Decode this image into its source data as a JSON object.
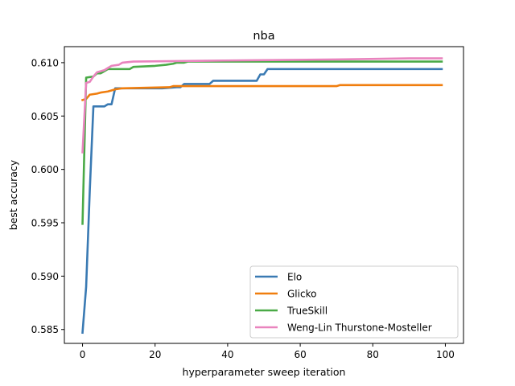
{
  "chart_data": {
    "type": "line",
    "title": "nba",
    "xlabel": "hyperparameter sweep iteration",
    "ylabel": "best accuracy",
    "xlim": [
      -5,
      105
    ],
    "ylim": [
      0.5837,
      0.6115
    ],
    "xticks": [
      0,
      20,
      40,
      60,
      80,
      100
    ],
    "yticks": [
      0.585,
      0.59,
      0.595,
      0.6,
      0.605,
      0.61
    ],
    "ytick_labels": [
      "0.585",
      "0.590",
      "0.595",
      "0.600",
      "0.605",
      "0.610"
    ],
    "xtick_labels": [
      "0",
      "20",
      "40",
      "60",
      "80",
      "100"
    ],
    "grid": false,
    "legend_position": "lower-right",
    "series": [
      {
        "name": "Elo",
        "color": "#3a7ab3",
        "points": [
          [
            0,
            0.5847
          ],
          [
            1,
            0.589
          ],
          [
            2,
            0.598
          ],
          [
            3,
            0.6059
          ],
          [
            5,
            0.6059
          ],
          [
            6,
            0.6059
          ],
          [
            7,
            0.6061
          ],
          [
            8,
            0.6061
          ],
          [
            9,
            0.6076
          ],
          [
            22,
            0.6076
          ],
          [
            26,
            0.6077
          ],
          [
            27,
            0.6077
          ],
          [
            28,
            0.608
          ],
          [
            35,
            0.608
          ],
          [
            36,
            0.6083
          ],
          [
            48,
            0.6083
          ],
          [
            49,
            0.6089
          ],
          [
            50,
            0.6089
          ],
          [
            51,
            0.6094
          ],
          [
            99,
            0.6094
          ]
        ]
      },
      {
        "name": "Glicko",
        "color": "#f07e0e",
        "points": [
          [
            0,
            0.6065
          ],
          [
            1,
            0.6066
          ],
          [
            2,
            0.607
          ],
          [
            4,
            0.6071
          ],
          [
            5,
            0.6072
          ],
          [
            7,
            0.6073
          ],
          [
            9,
            0.6075
          ],
          [
            11,
            0.6076
          ],
          [
            24,
            0.6077
          ],
          [
            25,
            0.6078
          ],
          [
            70,
            0.6078
          ],
          [
            71,
            0.6079
          ],
          [
            99,
            0.6079
          ]
        ]
      },
      {
        "name": "TrueSkill",
        "color": "#4aaa47",
        "points": [
          [
            0,
            0.5949
          ],
          [
            1,
            0.6086
          ],
          [
            3,
            0.6087
          ],
          [
            4,
            0.609
          ],
          [
            5,
            0.609
          ],
          [
            7,
            0.6094
          ],
          [
            13,
            0.6094
          ],
          [
            14,
            0.6096
          ],
          [
            20,
            0.6097
          ],
          [
            23,
            0.6098
          ],
          [
            25,
            0.6099
          ],
          [
            26,
            0.61
          ],
          [
            28,
            0.61
          ],
          [
            29,
            0.6101
          ],
          [
            99,
            0.6101
          ]
        ]
      },
      {
        "name": "Weng-Lin Thurstone-Mosteller",
        "color": "#e984be",
        "points": [
          [
            0,
            0.6016
          ],
          [
            1,
            0.6081
          ],
          [
            2,
            0.6082
          ],
          [
            3,
            0.6087
          ],
          [
            4,
            0.6091
          ],
          [
            6,
            0.6093
          ],
          [
            7,
            0.6095
          ],
          [
            8,
            0.6097
          ],
          [
            10,
            0.6098
          ],
          [
            11,
            0.61
          ],
          [
            14,
            0.6101
          ],
          [
            39,
            0.6102
          ],
          [
            70,
            0.6103
          ],
          [
            90,
            0.6104
          ],
          [
            99,
            0.6104
          ]
        ]
      }
    ]
  }
}
